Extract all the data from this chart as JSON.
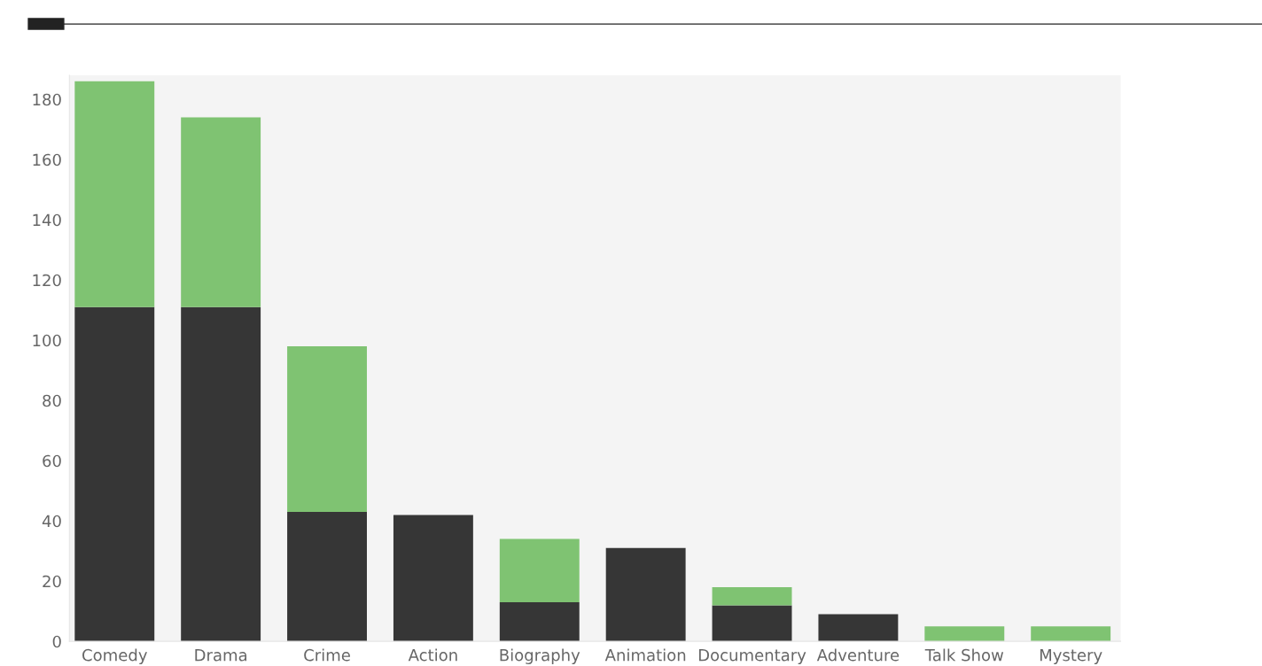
{
  "chart_data": {
    "type": "bar",
    "stacked": true,
    "categories": [
      "Comedy",
      "Drama",
      "Crime",
      "Action",
      "Biography",
      "Animation",
      "Documentary",
      "Adventure",
      "Talk Show",
      "Mystery"
    ],
    "series": [
      {
        "color": "#363636",
        "values": [
          111,
          111,
          43,
          42,
          13,
          31,
          12,
          9,
          0,
          0
        ]
      },
      {
        "color": "#7fc372",
        "values": [
          75,
          63,
          55,
          0,
          21,
          0,
          6,
          0,
          5,
          5
        ]
      }
    ],
    "ylim": [
      0,
      188
    ],
    "yticks": [
      0,
      20,
      40,
      60,
      80,
      100,
      120,
      140,
      160,
      180
    ],
    "grid": false,
    "legend": false
  }
}
